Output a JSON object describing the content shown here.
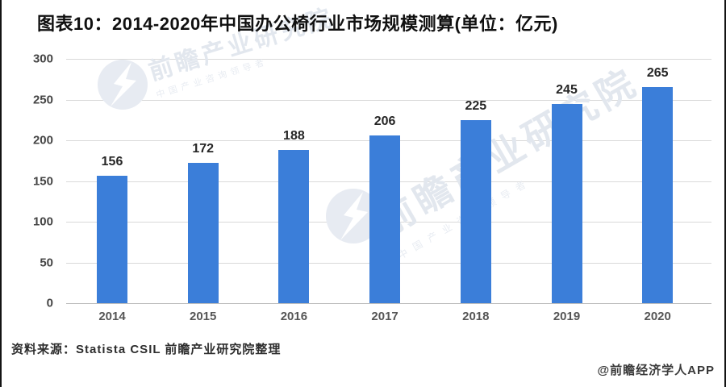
{
  "title": "图表10：2014-2020年中国办公椅行业市场规模测算(单位：亿元)",
  "chart_data": {
    "type": "bar",
    "title": "图表10：2014-2020年中国办公椅行业市场规模测算(单位：亿元)",
    "categories": [
      "2014",
      "2015",
      "2016",
      "2017",
      "2018",
      "2019",
      "2020"
    ],
    "values": [
      156,
      172,
      188,
      206,
      225,
      245,
      265
    ],
    "xlabel": "",
    "ylabel": "",
    "unit": "亿元",
    "ylim": [
      0,
      300
    ],
    "yticks": [
      0,
      50,
      100,
      150,
      200,
      250,
      300
    ],
    "grid": true,
    "legend_position": "none",
    "value_labels": true,
    "bar_color": "#3b7ed9"
  },
  "watermark": {
    "logo": "qianzhan-circle-logo",
    "main_text": "前瞻产业研究院",
    "sub_text": "中国产业咨询领导者"
  },
  "footer": {
    "source_note": "资料来源：Statista CSIL 前瞻产业研究院整理",
    "credit": "@前瞻经济学人APP"
  },
  "colors": {
    "bar": "#3b7ed9",
    "grid": "#d9d9d9",
    "axis_text": "#4d4d4d",
    "title_text": "#101010",
    "watermark": "#e2e7ee"
  }
}
